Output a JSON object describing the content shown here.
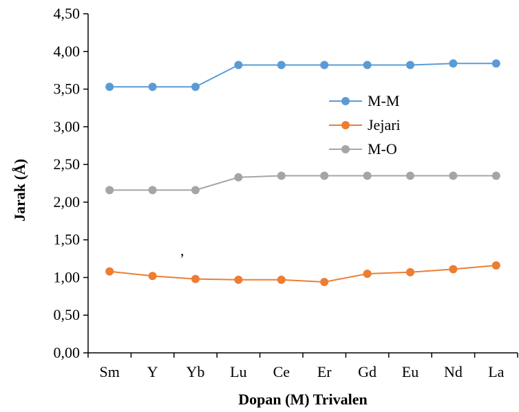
{
  "chart_data": {
    "type": "line",
    "title": "",
    "xlabel": "Dopan (M) Trivalen",
    "ylabel": "Jarak (Å)",
    "ylim": [
      0,
      4.5
    ],
    "ytick_step": 0.5,
    "ytick_labels": [
      "0,00",
      "0,50",
      "1,00",
      "1,50",
      "2,00",
      "2,50",
      "3,00",
      "3,50",
      "4,00",
      "4,50"
    ],
    "categories": [
      "Sm",
      "Y",
      "Yb",
      "Lu",
      "Ce",
      "Er",
      "Gd",
      "Eu",
      "Nd",
      "La"
    ],
    "grid": false,
    "legend_position": "center-right",
    "annotation": ",",
    "series": [
      {
        "name": "M-M",
        "color": "#5B9BD5",
        "values": [
          3.53,
          3.53,
          3.53,
          3.82,
          3.82,
          3.82,
          3.82,
          3.82,
          3.84,
          3.84
        ]
      },
      {
        "name": "Jejari",
        "color": "#ED7D31",
        "values": [
          1.08,
          1.02,
          0.98,
          0.97,
          0.97,
          0.94,
          1.05,
          1.07,
          1.11,
          1.16
        ]
      },
      {
        "name": "M-O",
        "color": "#A5A5A5",
        "values": [
          2.16,
          2.16,
          2.16,
          2.33,
          2.35,
          2.35,
          2.35,
          2.35,
          2.35,
          2.35
        ]
      }
    ]
  }
}
